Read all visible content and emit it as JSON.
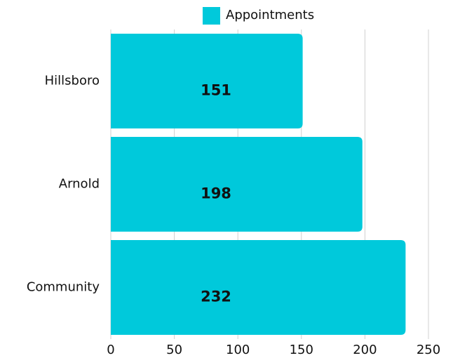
{
  "chart_data": {
    "type": "bar",
    "orientation": "horizontal",
    "categories": [
      "Hillsboro",
      "Arnold",
      "Community"
    ],
    "series": [
      {
        "name": "Appointments",
        "color": "#00c9db",
        "values": [
          151,
          198,
          232
        ]
      }
    ],
    "xlim": [
      0,
      250
    ],
    "xticks": [
      0,
      50,
      100,
      150,
      200,
      250
    ],
    "grid": true,
    "legend": "top"
  }
}
